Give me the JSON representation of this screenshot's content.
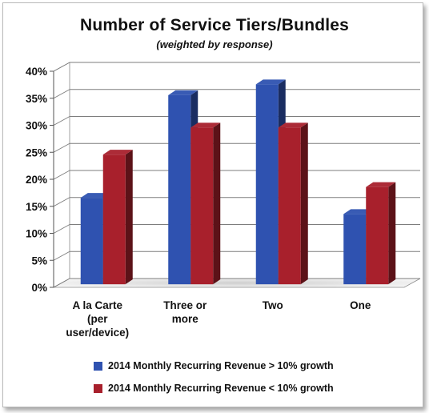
{
  "chart_data": {
    "type": "bar",
    "title": "Number of Service Tiers/Bundles",
    "subtitle": "(weighted by response)",
    "categories": [
      "A la Carte (per user/device)",
      "Three or more",
      "Two",
      "One"
    ],
    "category_lines": [
      [
        "A la Carte",
        "(per",
        "user/device)"
      ],
      [
        "Three or",
        "more"
      ],
      [
        "Two"
      ],
      [
        "One"
      ]
    ],
    "series": [
      {
        "name": "2014 Monthly Recurring Revenue > 10% growth",
        "color": "#2f52b0",
        "values": [
          16,
          35,
          37,
          13
        ]
      },
      {
        "name": "2014 Monthly Recurring Revenue < 10% growth",
        "color": "#a8202c",
        "values": [
          24,
          29,
          29,
          18
        ]
      }
    ],
    "ylim": [
      0,
      40
    ],
    "yticks": [
      "0%",
      "5%",
      "10%",
      "15%",
      "20%",
      "25%",
      "30%",
      "35%",
      "40%"
    ],
    "grid": true,
    "legend_position": "bottom",
    "style": "3d-clustered-column"
  }
}
